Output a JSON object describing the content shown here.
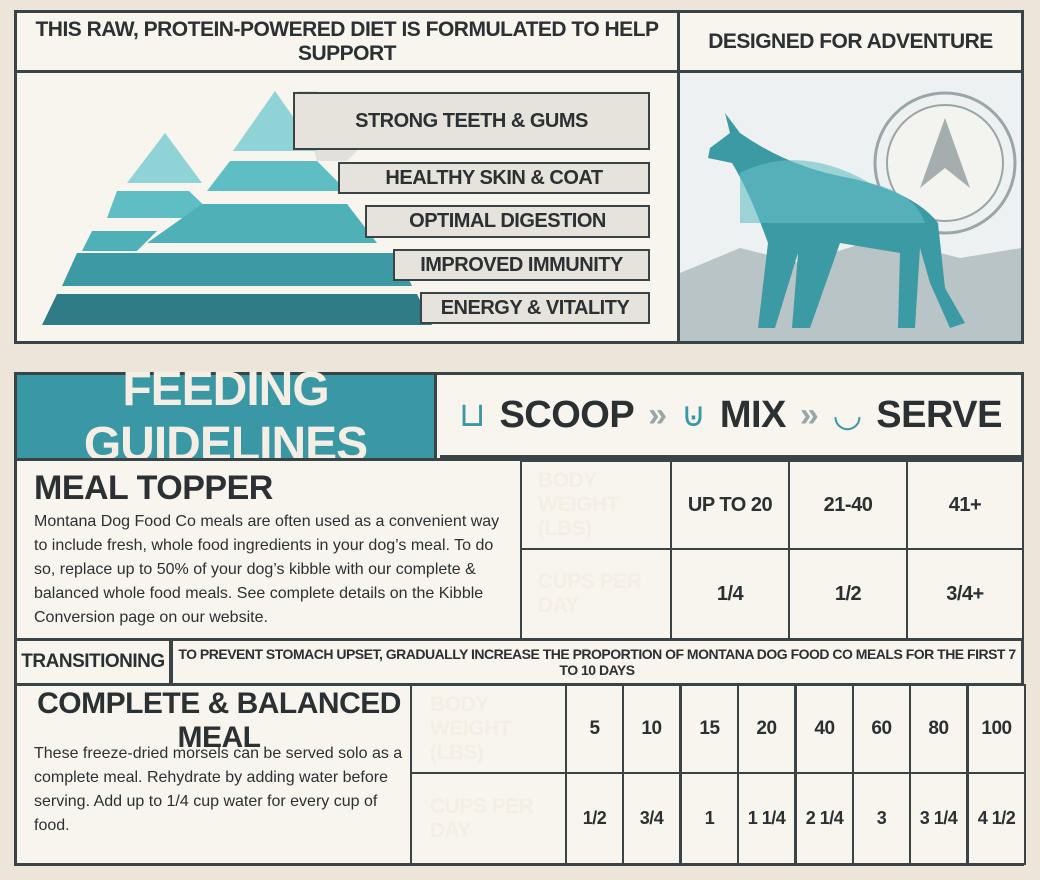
{
  "top": {
    "left_title": "This raw, protein-powered diet is formulated to help support",
    "right_title": "Designed for adventure",
    "benefits": [
      "Strong teeth & gums",
      "Healthy skin & coat",
      "Optimal digestion",
      "Improved immunity",
      "Energy & vitality"
    ],
    "icons": {
      "pyramid": "pyramid-graphic",
      "wolf": "wolf-silhouette",
      "compass": "compass-icon"
    }
  },
  "feeding": {
    "title": "Feeding Guidelines",
    "steps": [
      {
        "label": "Scoop",
        "icon": "scoop-icon"
      },
      {
        "label": "Mix",
        "icon": "mix-bowl-icon"
      },
      {
        "label": "Serve",
        "icon": "dog-bowl-icon"
      }
    ],
    "topper": {
      "title": "Meal Topper",
      "text": "Montana Dog Food Co meals are often used as a convenient way to include fresh, whole food ingredients in your dog’s meal. To do so, replace up to 50% of your dog’s kibble with our complete & balanced whole food meals. See complete details on the Kibble Conversion page on our website.",
      "weight_label": "Body Weight (LBS)",
      "cups_label": "Cups per day",
      "weights": [
        "Up to 20",
        "21-40",
        "41+"
      ],
      "cups": [
        "1/4",
        "1/2",
        "3/4+"
      ]
    },
    "transition": {
      "label": "Transitioning",
      "text": "To prevent stomach upset, gradually increase the proportion of Montana Dog Food Co meals for the first 7 to 10 days"
    },
    "complete": {
      "title": "Complete & Balanced Meal",
      "text": "These freeze-dried morsels can be served solo as a complete meal. Rehydrate by adding water before serving. Add up to 1/4 cup water for every cup of food.",
      "weight_label": "Body Weight (LBS)",
      "cups_label": "Cups per day",
      "weights": [
        "5",
        "10",
        "15",
        "20",
        "40",
        "60",
        "80",
        "100"
      ],
      "cups": [
        "1/2",
        "3/4",
        "1",
        "1 1/4",
        "2 1/4",
        "3",
        "3 1/4",
        "4 1/2"
      ]
    }
  },
  "colors": {
    "teal": "#3a97a4",
    "dark": "#3a4446",
    "cream": "#f8f4ee"
  }
}
